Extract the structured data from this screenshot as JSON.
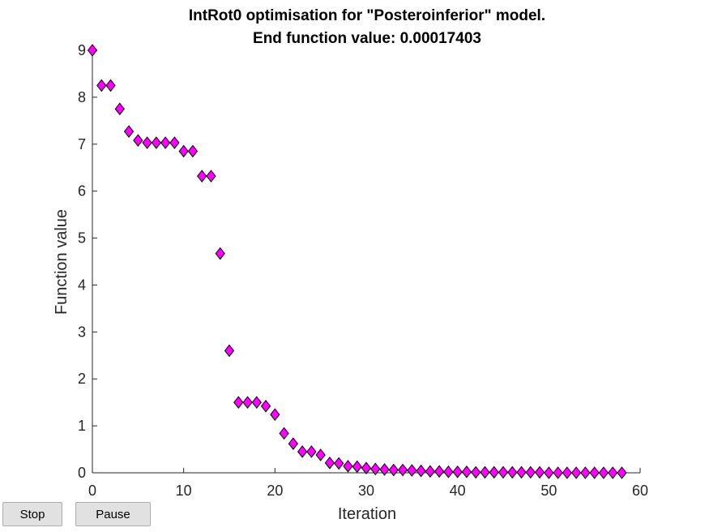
{
  "buttons": {
    "stop_label": "Stop",
    "pause_label": "Pause"
  },
  "colors": {
    "marker_fill": "#ff00ff",
    "marker_edge": "#000000",
    "axis": "#262626"
  },
  "chart_data": {
    "type": "scatter",
    "title": "IntRot0 optimisation for \"Posteroinferior\" model.",
    "subtitle": "End function value: 0.00017403",
    "xlabel": "Iteration",
    "ylabel": "Function value",
    "xlim": [
      0,
      60
    ],
    "ylim": [
      0,
      9
    ],
    "xticks": [
      0,
      10,
      20,
      30,
      40,
      50,
      60
    ],
    "yticks": [
      0,
      1,
      2,
      3,
      4,
      5,
      6,
      7,
      8,
      9
    ],
    "grid": false,
    "marker": "diamond",
    "x": [
      0,
      1,
      2,
      3,
      4,
      5,
      6,
      7,
      8,
      9,
      10,
      11,
      12,
      13,
      14,
      15,
      16,
      17,
      18,
      19,
      20,
      21,
      22,
      23,
      24,
      25,
      26,
      27,
      28,
      29,
      30,
      31,
      32,
      33,
      34,
      35,
      36,
      37,
      38,
      39,
      40,
      41,
      42,
      43,
      44,
      45,
      46,
      47,
      48,
      49,
      50,
      51,
      52,
      53,
      54,
      55,
      56,
      57,
      58
    ],
    "y": [
      9.0,
      8.25,
      8.25,
      7.75,
      7.27,
      7.08,
      7.03,
      7.03,
      7.03,
      7.03,
      6.85,
      6.85,
      6.32,
      6.32,
      4.67,
      2.6,
      1.5,
      1.5,
      1.5,
      1.42,
      1.24,
      0.84,
      0.62,
      0.45,
      0.45,
      0.38,
      0.21,
      0.2,
      0.14,
      0.13,
      0.1,
      0.08,
      0.07,
      0.06,
      0.06,
      0.05,
      0.04,
      0.03,
      0.03,
      0.02,
      0.02,
      0.02,
      0.01,
      0.01,
      0.01,
      0.01,
      0.01,
      0.01,
      0.01,
      0.01,
      0.0,
      0.0,
      0.0,
      0.0,
      0.0,
      0.0,
      0.0,
      0.0,
      0.0
    ]
  }
}
